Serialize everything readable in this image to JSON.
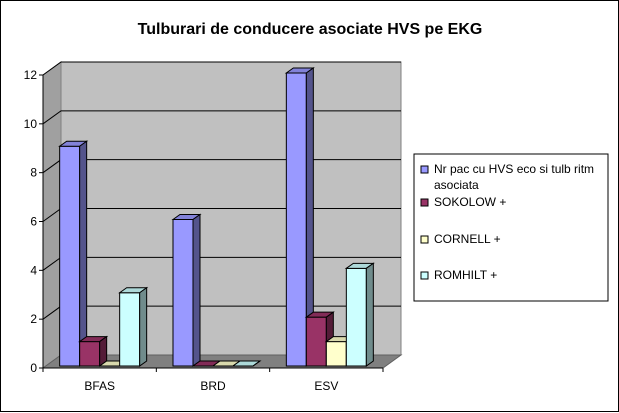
{
  "chart_data": {
    "type": "bar",
    "title": "Tulburari de conducere asociate HVS pe EKG",
    "categories": [
      "BFAS",
      "BRD",
      "ESV"
    ],
    "series": [
      {
        "name": "Nr pac cu HVS eco si tulb ritm asociata",
        "values": [
          9,
          6,
          12
        ],
        "color": "#9999ff"
      },
      {
        "name": "SOKOLOW +",
        "values": [
          1,
          0,
          2
        ],
        "color": "#993366"
      },
      {
        "name": "CORNELL +",
        "values": [
          0,
          0,
          1
        ],
        "color": "#ffffcc"
      },
      {
        "name": "ROMHILT +",
        "values": [
          3,
          0,
          4
        ],
        "color": "#ccffff"
      }
    ],
    "ylim": [
      0,
      12
    ],
    "yticks": [
      0,
      2,
      4,
      6,
      8,
      10,
      12
    ],
    "grid": true,
    "three_d": true,
    "legend_position": "right",
    "wall_color": "#c0c0c0"
  }
}
